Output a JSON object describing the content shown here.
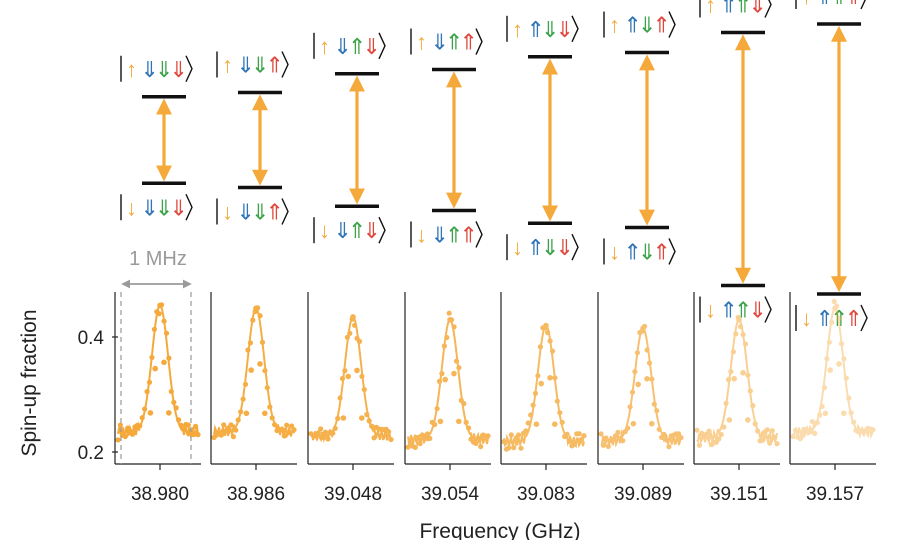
{
  "chart_data": {
    "type": "scatter",
    "xlabel": "Frequency (GHz)",
    "ylabel": "Spin-up fraction",
    "y_ticks": [
      "0.2",
      "0.4"
    ],
    "ylim": [
      0.19,
      0.49
    ],
    "scale_bar_label": "1 MHz",
    "colors": {
      "arrow_up_1": "#f5a93a",
      "blue": "#2f74b5",
      "green": "#3aa347",
      "red": "#e0473c",
      "data": "#f5a93a",
      "level": "#111111"
    },
    "panels": [
      {
        "center_label": "38.980",
        "baseline": 0.235,
        "peak": 0.455,
        "width_mhz": 0.12,
        "opacity": 1.0,
        "upper_state": [
          "up",
          "down",
          "down",
          "down"
        ],
        "lower_state": [
          "down",
          "down",
          "down",
          "down"
        ],
        "gap": 0.25
      },
      {
        "center_label": "38.986",
        "baseline": 0.235,
        "peak": 0.45,
        "width_mhz": 0.12,
        "opacity": 0.95,
        "upper_state": [
          "up",
          "down",
          "down",
          "up"
        ],
        "lower_state": [
          "down",
          "down",
          "down",
          "up"
        ],
        "gap": 0.3
      },
      {
        "center_label": "39.048",
        "baseline": 0.228,
        "peak": 0.435,
        "width_mhz": 0.12,
        "opacity": 0.9,
        "upper_state": [
          "up",
          "down",
          "up",
          "down"
        ],
        "lower_state": [
          "down",
          "down",
          "up",
          "down"
        ],
        "gap": 0.52
      },
      {
        "center_label": "39.054",
        "baseline": 0.222,
        "peak": 0.43,
        "width_mhz": 0.12,
        "opacity": 0.85,
        "upper_state": [
          "up",
          "down",
          "up",
          "up"
        ],
        "lower_state": [
          "down",
          "down",
          "up",
          "up"
        ],
        "gap": 0.57
      },
      {
        "center_label": "39.083",
        "baseline": 0.218,
        "peak": 0.42,
        "width_mhz": 0.12,
        "opacity": 0.8,
        "upper_state": [
          "up",
          "up",
          "down",
          "down"
        ],
        "lower_state": [
          "down",
          "up",
          "down",
          "down"
        ],
        "gap": 0.72
      },
      {
        "center_label": "39.089",
        "baseline": 0.22,
        "peak": 0.415,
        "width_mhz": 0.12,
        "opacity": 0.72,
        "upper_state": [
          "up",
          "up",
          "down",
          "up"
        ],
        "lower_state": [
          "down",
          "up",
          "down",
          "up"
        ],
        "gap": 0.77
      },
      {
        "center_label": "39.151",
        "baseline": 0.225,
        "peak": 0.43,
        "width_mhz": 0.12,
        "opacity": 0.55,
        "upper_state": [
          "up",
          "up",
          "up",
          "down"
        ],
        "lower_state": [
          "down",
          "up",
          "up",
          "down"
        ],
        "gap": 1.1
      },
      {
        "center_label": "39.157",
        "baseline": 0.235,
        "peak": 0.45,
        "width_mhz": 0.12,
        "opacity": 0.4,
        "upper_state": [
          "up",
          "up",
          "up",
          "up"
        ],
        "lower_state": [
          "down",
          "up",
          "up",
          "up"
        ],
        "gap": 1.2
      }
    ]
  }
}
